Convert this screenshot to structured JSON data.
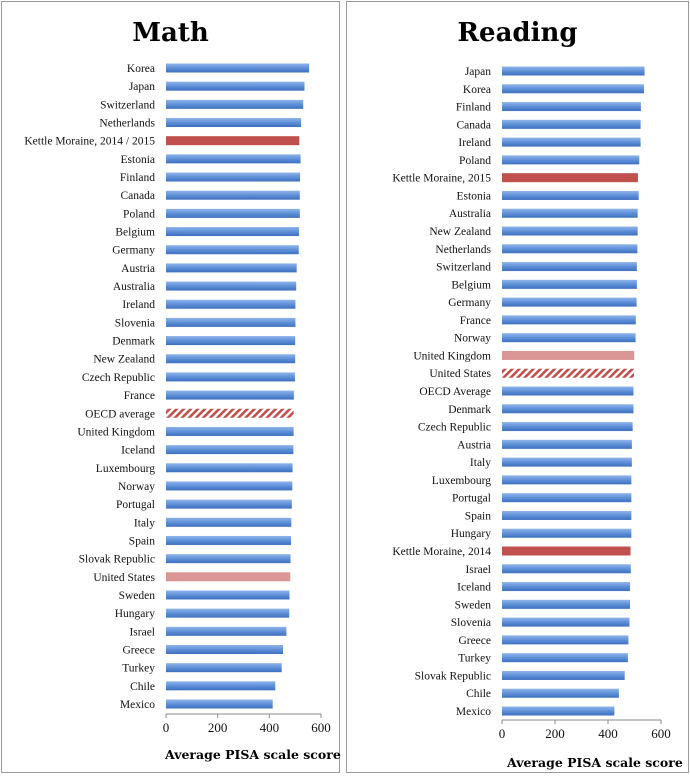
{
  "colors": {
    "bar": "#5b8dd6",
    "highlight": "#c0504d",
    "light_highlight": "#d99694",
    "hatch": "#c0504d"
  },
  "chart_data": [
    {
      "type": "bar",
      "orientation": "horizontal",
      "title": "Math",
      "xlabel": "Average PISA scale score",
      "xlim": [
        0,
        600
      ],
      "xticks": [
        0,
        200,
        400,
        600
      ],
      "grid": false,
      "categories": [
        "Korea",
        "Japan",
        "Switzerland",
        "Netherlands",
        "Kettle Moraine, 2014 / 2015",
        "Estonia",
        "Finland",
        "Canada",
        "Poland",
        "Belgium",
        "Germany",
        "Austria",
        "Australia",
        "Ireland",
        "Slovenia",
        "Denmark",
        "New Zealand",
        "Czech Republic",
        "France",
        "OECD average",
        "United Kingdom",
        "Iceland",
        "Luxembourg",
        "Norway",
        "Portugal",
        "Italy",
        "Spain",
        "Slovak Republic",
        "United States",
        "Sweden",
        "Hungary",
        "Israel",
        "Greece",
        "Turkey",
        "Chile",
        "Mexico"
      ],
      "values": [
        554,
        536,
        531,
        523,
        516,
        521,
        519,
        518,
        518,
        515,
        514,
        506,
        504,
        501,
        501,
        500,
        500,
        499,
        495,
        494,
        494,
        493,
        490,
        489,
        487,
        485,
        484,
        482,
        481,
        478,
        477,
        466,
        453,
        448,
        423,
        413
      ],
      "highlight_styles": {
        "Kettle Moraine, 2014 / 2015": "solid-red",
        "OECD average": "hatched-red",
        "United States": "light-red"
      }
    },
    {
      "type": "bar",
      "orientation": "horizontal",
      "title": "Reading",
      "xlabel": "Average PISA scale score",
      "xlim": [
        0,
        600
      ],
      "xticks": [
        0,
        200,
        400,
        600
      ],
      "grid": false,
      "categories": [
        "Japan",
        "Korea",
        "Finland",
        "Canada",
        "Ireland",
        "Poland",
        "Kettle Moraine, 2015",
        "Estonia",
        "Australia",
        "New Zealand",
        "Netherlands",
        "Switzerland",
        "Belgium",
        "Germany",
        "France",
        "Norway",
        "United Kingdom",
        "United States",
        "OECD Average",
        "Denmark",
        "Czech Republic",
        "Austria",
        "Italy",
        "Luxembourg",
        "Portugal",
        "Spain",
        "Hungary",
        "Kettle Moraine, 2014",
        "Israel",
        "Iceland",
        "Sweden",
        "Slovenia",
        "Greece",
        "Turkey",
        "Slovak Republic",
        "Chile",
        "Mexico"
      ],
      "values": [
        538,
        536,
        524,
        523,
        523,
        518,
        513,
        516,
        512,
        512,
        511,
        509,
        509,
        508,
        505,
        504,
        499,
        498,
        496,
        496,
        493,
        490,
        490,
        488,
        488,
        488,
        488,
        485,
        486,
        483,
        483,
        481,
        477,
        475,
        463,
        441,
        424
      ],
      "highlight_styles": {
        "Kettle Moraine, 2015": "solid-red",
        "United Kingdom": "light-red",
        "United States": "hatched-red",
        "Kettle Moraine, 2014": "solid-red"
      }
    }
  ]
}
